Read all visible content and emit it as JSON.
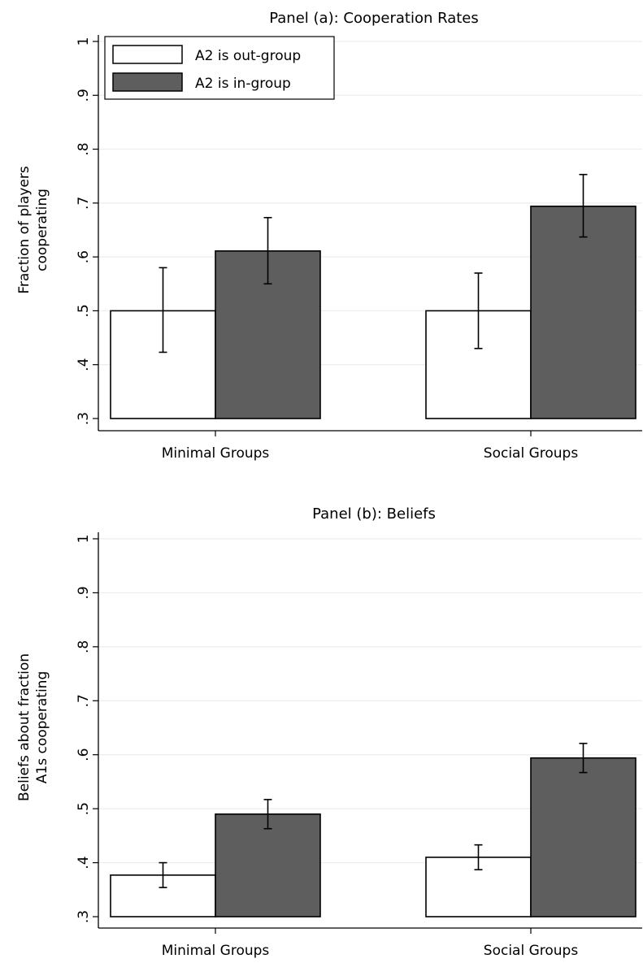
{
  "chart_data": [
    {
      "type": "bar",
      "title": "Panel (a): Cooperation Rates",
      "ylabel": [
        "Fraction of players",
        "cooperating"
      ],
      "xlabel": "",
      "ylim": [
        0.3,
        1
      ],
      "yticks": [
        ".3",
        ".4",
        ".5",
        ".6",
        ".7",
        ".8",
        ".9",
        "1"
      ],
      "grid": true,
      "legend_position": "top-left",
      "categories": [
        "Minimal Groups",
        "Social Groups"
      ],
      "series": [
        {
          "name": "A2 is out-group",
          "color": "#ffffff",
          "values": [
            0.5,
            0.5
          ],
          "ci_low": [
            0.423,
            0.43
          ],
          "ci_high": [
            0.58,
            0.57
          ]
        },
        {
          "name": "A2 is in-group",
          "color": "#5e5e5e",
          "values": [
            0.611,
            0.694
          ],
          "ci_low": [
            0.55,
            0.637
          ],
          "ci_high": [
            0.673,
            0.753
          ]
        }
      ]
    },
    {
      "type": "bar",
      "title": "Panel (b): Beliefs",
      "ylabel": [
        "Beliefs about fraction",
        "A1s cooperating"
      ],
      "xlabel": "",
      "ylim": [
        0.3,
        1
      ],
      "yticks": [
        ".3",
        ".4",
        ".5",
        ".6",
        ".7",
        ".8",
        ".9",
        "1"
      ],
      "grid": true,
      "categories": [
        "Minimal Groups",
        "Social Groups"
      ],
      "series": [
        {
          "name": "A2 is out-group",
          "color": "#ffffff",
          "values": [
            0.377,
            0.41
          ],
          "ci_low": [
            0.354,
            0.387
          ],
          "ci_high": [
            0.4,
            0.433
          ]
        },
        {
          "name": "A2 is in-group",
          "color": "#5e5e5e",
          "values": [
            0.49,
            0.594
          ],
          "ci_low": [
            0.463,
            0.567
          ],
          "ci_high": [
            0.517,
            0.621
          ]
        }
      ]
    }
  ]
}
